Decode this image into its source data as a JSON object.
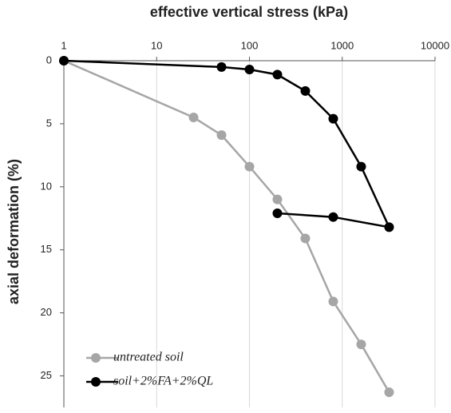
{
  "chart_data": {
    "type": "line",
    "title": "effective vertical stress (kPa)",
    "y_label": "axial deformation (%)",
    "x_scale": "log",
    "y_inverted": true,
    "xlim": [
      1,
      10000
    ],
    "xticks": [
      1,
      10,
      100,
      1000,
      10000
    ],
    "ylim": [
      0,
      27.5
    ],
    "yticks": [
      0,
      5,
      10,
      15,
      20,
      25
    ],
    "grid": true,
    "legend": "bottom-left",
    "series": [
      {
        "name": "untreated soil",
        "color": "#a6a6a6",
        "x": [
          1,
          25,
          50,
          100,
          200,
          400,
          800,
          1600,
          3200
        ],
        "values": [
          0,
          4.5,
          5.9,
          8.4,
          11,
          14.1,
          19.1,
          22.5,
          26.3
        ]
      },
      {
        "name": "soil+2%FA+2%QL",
        "color": "#000000",
        "x": [
          1,
          50,
          100,
          200,
          400,
          800,
          1600,
          3200,
          800,
          200
        ],
        "values": [
          0,
          0.5,
          0.7,
          1.1,
          2.4,
          4.6,
          8.4,
          13.2,
          12.4,
          12.1
        ]
      }
    ]
  }
}
